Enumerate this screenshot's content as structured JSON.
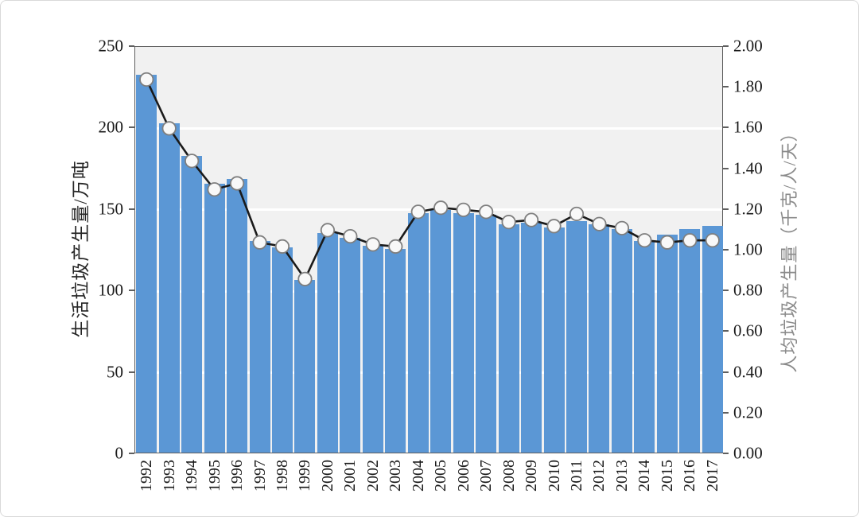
{
  "page": {
    "background_color": "#ffffff",
    "frame_border_color": "#d9d9d9",
    "description": "Dual-axis combination chart: blue bars (left axis, municipal household waste generation) with black line and circular markers (right axis, per-capita waste generation), years 1992-2017"
  },
  "chart_data": {
    "type": "bar+line",
    "categories": [
      "1992",
      "1993",
      "1994",
      "1995",
      "1996",
      "1997",
      "1998",
      "1999",
      "2000",
      "2001",
      "2002",
      "2003",
      "2004",
      "2005",
      "2006",
      "2007",
      "2008",
      "2009",
      "2010",
      "2011",
      "2012",
      "2013",
      "2014",
      "2015",
      "2016",
      "2017"
    ],
    "series": [
      {
        "name": "生活垃圾产生量",
        "type": "bar",
        "axis": "left",
        "color": "#5b97d5",
        "values": [
          232,
          202,
          182,
          165,
          168,
          130,
          126,
          106,
          135,
          132,
          127,
          125,
          147,
          149,
          147,
          146,
          140,
          141,
          138,
          142,
          140,
          137,
          130,
          134,
          137,
          139
        ]
      },
      {
        "name": "人均垃圾产生量",
        "type": "line",
        "axis": "right",
        "color": "#1a1a1a",
        "marker": "circle",
        "marker_fill": "#f8f8f8",
        "marker_stroke": "#7f7f7f",
        "values": [
          1.84,
          1.6,
          1.44,
          1.3,
          1.33,
          1.04,
          1.02,
          0.86,
          1.1,
          1.07,
          1.03,
          1.02,
          1.19,
          1.21,
          1.2,
          1.19,
          1.14,
          1.15,
          1.12,
          1.18,
          1.13,
          1.11,
          1.05,
          1.04,
          1.05,
          1.05
        ]
      }
    ],
    "left_axis": {
      "label": "生活垃圾产生量/万吨",
      "min": 0,
      "max": 250,
      "ticks": [
        "250",
        "200",
        "150",
        "100",
        "50",
        "0"
      ]
    },
    "right_axis": {
      "label": "人均垃圾产生量（千克/人/天）",
      "min": 0,
      "max": 2.0,
      "ticks": [
        "2.00",
        "1.80",
        "1.60",
        "1.40",
        "1.20",
        "1.00",
        "0.80",
        "0.60",
        "0.40",
        "0.20",
        "0.00"
      ]
    },
    "x_axis": {
      "tick_label_rotation_deg": -90
    },
    "grid": {
      "horizontal_left_values": [
        50,
        100,
        150,
        200
      ],
      "color": "#ffffff",
      "plot_background": "#f1f1f1"
    },
    "legend": null,
    "title": null
  },
  "colors": {
    "bar": "#5b97d5",
    "line": "#1a1a1a",
    "marker_fill": "#f8f8f8",
    "marker_stroke": "#7f7f7f",
    "plot_background": "#f1f1f1",
    "gridline": "#ffffff",
    "spine": "#5f5f5f",
    "left_title": "#262626",
    "right_title": "#8a8a8a",
    "tick_label": "#1a1a1a"
  }
}
